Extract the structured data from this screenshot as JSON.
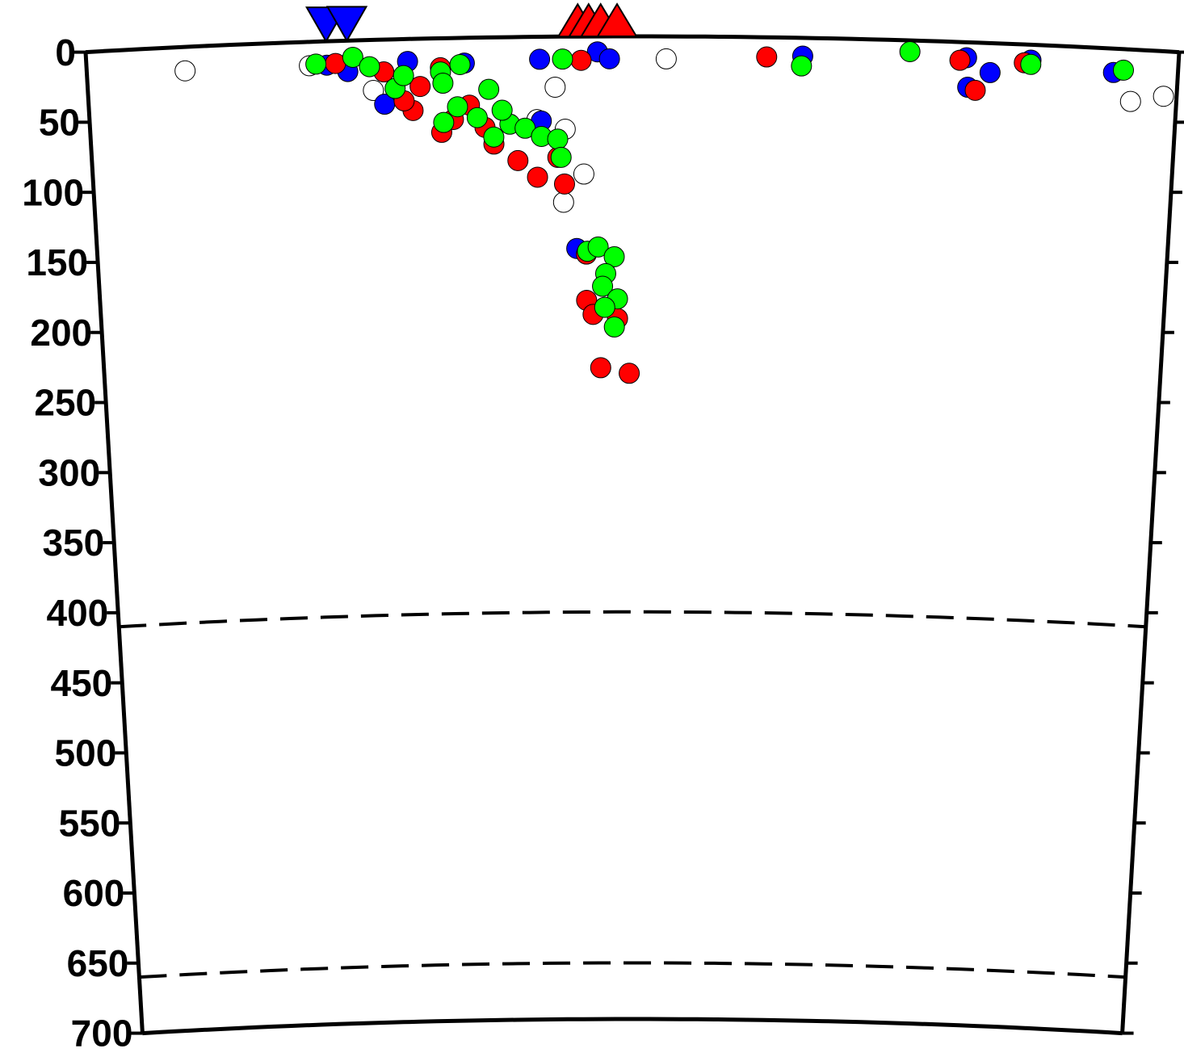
{
  "chart_data": {
    "type": "scatter",
    "xlim": [
      0,
      100
    ],
    "ylim": [
      0,
      700
    ],
    "yticks": [
      0,
      50,
      100,
      150,
      200,
      250,
      300,
      350,
      400,
      450,
      500,
      550,
      600,
      650,
      700
    ],
    "dashed_depths": [
      410,
      660
    ],
    "stations": [
      {
        "color": "#0000ff",
        "symbol": "triangle-down",
        "x": [
          22,
          23.9
        ]
      },
      {
        "color": "#ff0000",
        "symbol": "triangle-up",
        "x": [
          45,
          46,
          47.1,
          48.6
        ]
      }
    ],
    "series": [
      {
        "color": "#ffffff",
        "x": [
          9,
          20.4,
          26.2,
          42.9,
          43.8,
          45.5,
          43.6,
          53.1,
          95.8,
          98.8,
          41.2
        ],
        "values": [
          17,
          17,
          36,
          36,
          66,
          98,
          118,
          16,
          37,
          32,
          59
        ]
      },
      {
        "color": "#0000ff",
        "x": [
          22,
          23.9,
          27.2,
          29.4,
          34.6,
          41.5,
          46.8,
          47.9,
          65.6,
          80.6,
          80.8,
          82.8,
          86.5,
          94.1,
          44.8,
          41.6
        ],
        "values": [
          17,
          22,
          46,
          16,
          18,
          16,
          11,
          16,
          13,
          11,
          32,
          21,
          11,
          17,
          151,
          60
        ]
      },
      {
        "color": "#ff0000",
        "x": [
          22.8,
          27.2,
          29.8,
          30.5,
          32.4,
          33.5,
          32.4,
          35,
          37.2,
          39.4,
          41.2,
          43.7,
          43.1,
          45.3,
          62.3,
          80,
          81.5,
          85.9,
          45.7,
          45.7,
          46.3,
          48.6,
          47,
          49.7,
          29,
          36.4
        ],
        "values": [
          16,
          23,
          51,
          34,
          21,
          58,
          67,
          48,
          76,
          88,
          100,
          105,
          86,
          17,
          14,
          13,
          34,
          13,
          155,
          188,
          198,
          201,
          236,
          240,
          44,
          64
        ]
      },
      {
        "color": "#00ff00",
        "x": [
          21,
          24.4,
          25.9,
          28.2,
          29,
          32.4,
          32.6,
          34.2,
          36.8,
          32.6,
          33.9,
          35.7,
          37.2,
          38.7,
          40.1,
          41.6,
          43.1,
          43.4,
          43.6,
          75.4,
          65.5,
          86.5,
          95,
          45.8,
          46.8,
          48.3,
          47.5,
          47.2,
          48.6,
          47.4,
          48.3,
          38
        ],
        "values": [
          16,
          12,
          19,
          35,
          26,
          24,
          32,
          19,
          37,
          60,
          49,
          57,
          71,
          62,
          65,
          71,
          73,
          86,
          16,
          8,
          20,
          14,
          15,
          153,
          150,
          157,
          169,
          178,
          187,
          193,
          207,
          52
        ]
      }
    ]
  }
}
